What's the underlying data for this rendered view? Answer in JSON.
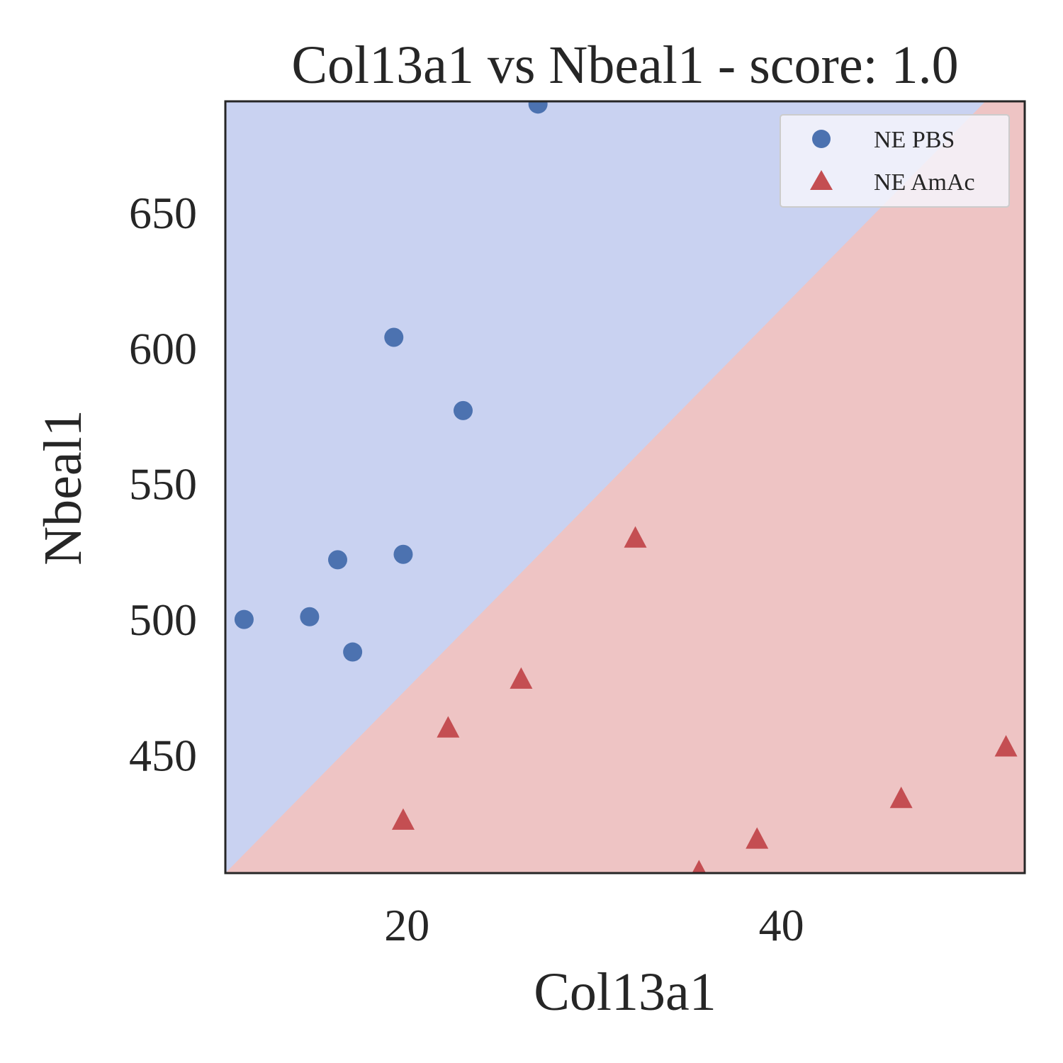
{
  "chart_data": {
    "type": "scatter",
    "title": "Col13a1 vs Nbeal1 - score: 1.0",
    "xlabel": "Col13a1",
    "ylabel": "Nbeal1",
    "xlim": [
      10.3,
      53.0
    ],
    "ylim": [
      406.5,
      691.0
    ],
    "xticks": [
      20,
      40
    ],
    "yticks": [
      450,
      500,
      550,
      600,
      650
    ],
    "grid": false,
    "legend_position": "top-right",
    "decision_boundary": {
      "points": [
        [
          10.3,
          406.5
        ],
        [
          50.9,
          691.0
        ]
      ],
      "upper_class": "NE PBS",
      "lower_class": "NE AmAc"
    },
    "series": [
      {
        "name": "NE PBS",
        "marker": "circle",
        "color": "#4c72b0",
        "region_color": "#c9d2f1",
        "x": [
          11.3,
          14.8,
          16.3,
          17.1,
          19.3,
          19.8,
          23.0,
          27.0
        ],
        "y": [
          500,
          501,
          522,
          488,
          604,
          524,
          577,
          690
        ]
      },
      {
        "name": "NE AmAc",
        "marker": "triangle",
        "color": "#c44e52",
        "region_color": "#eec4c4",
        "x": [
          19.8,
          22.2,
          26.1,
          32.2,
          35.6,
          38.7,
          46.4,
          52.0
        ],
        "y": [
          426,
          460,
          478,
          530,
          407,
          419,
          434,
          453
        ]
      }
    ]
  }
}
